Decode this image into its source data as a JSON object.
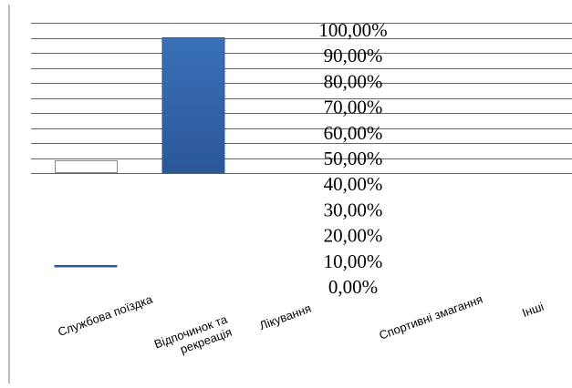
{
  "chart_data": {
    "type": "bar",
    "categories": [
      "Службова поїздка",
      "Відпочинок та рекреація",
      "Лікування",
      "Спортивні змагання",
      "Інші"
    ],
    "category_lines": [
      [
        "Службова поїздка"
      ],
      [
        "Відпочинок та",
        "рекреація"
      ],
      [
        "Лікування"
      ],
      [
        "Спортивні змагання"
      ],
      [
        "Інші"
      ]
    ],
    "values": [
      0.1,
      0.9,
      0,
      0,
      0
    ],
    "y_tick_labels": [
      "0,00%",
      "10,00%",
      "20,00%",
      "30,00%",
      "40,00%",
      "50,00%",
      "60,00%",
      "70,00%",
      "80,00%",
      "90,00%",
      "100,00%"
    ],
    "ylim": [
      0,
      1
    ],
    "bar_color": "#3a70b8",
    "bar_color_dark": "#2b5797",
    "grid": true
  }
}
